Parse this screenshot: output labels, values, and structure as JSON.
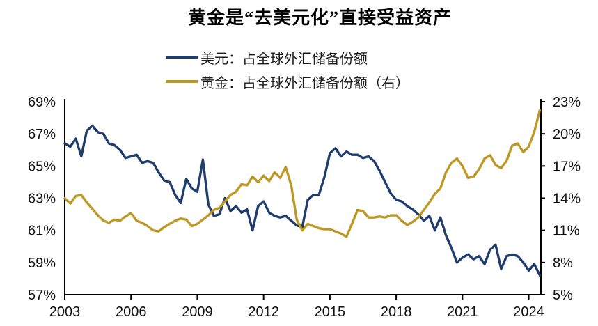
{
  "title": "黄金是“去美元化”直接受益资产",
  "legend": {
    "items": [
      {
        "label": "美元：占全球外汇储备份额",
        "color": "#1F3D6D"
      },
      {
        "label": "黄金：占全球外汇储备份额（右）",
        "color": "#BD9824"
      }
    ]
  },
  "chart_data": {
    "type": "line",
    "title": "黄金是“去美元化”直接受益资产",
    "x_start": 2003.0,
    "x_step": 0.25,
    "x_tick_labels": [
      "2003",
      "2006",
      "2009",
      "2012",
      "2015",
      "2018",
      "2021",
      "2024"
    ],
    "left_axis": {
      "ticks": [
        "69%",
        "67%",
        "65%",
        "63%",
        "61%",
        "59%",
        "57%"
      ],
      "range": [
        57,
        69
      ]
    },
    "right_axis": {
      "ticks": [
        "23%",
        "20%",
        "17%",
        "14%",
        "11%",
        "8%",
        "5%"
      ],
      "range": [
        5,
        23
      ]
    },
    "grid": "off",
    "legend_position": "top",
    "series": [
      {
        "name": "美元：占全球外汇储备份额",
        "axis": "left",
        "color": "#1F3D6D",
        "values": [
          66.4,
          66.2,
          66.7,
          65.6,
          67.2,
          67.5,
          67.1,
          67.0,
          66.4,
          66.3,
          66.0,
          65.5,
          65.6,
          65.7,
          65.2,
          65.3,
          65.2,
          64.6,
          64.1,
          64.0,
          63.2,
          62.7,
          64.2,
          63.6,
          63.4,
          65.4,
          62.6,
          61.9,
          62.0,
          63.0,
          62.2,
          62.5,
          62.1,
          62.3,
          61.0,
          62.5,
          62.8,
          62.1,
          61.9,
          61.8,
          61.9,
          61.6,
          61.3,
          61.2,
          62.9,
          63.2,
          63.2,
          64.3,
          65.8,
          66.1,
          65.6,
          65.9,
          65.7,
          65.7,
          65.5,
          65.6,
          65.3,
          64.7,
          64.0,
          63.3,
          62.9,
          62.8,
          62.5,
          62.3,
          62.0,
          61.6,
          61.9,
          61.0,
          61.8,
          60.7,
          59.9,
          59.0,
          59.3,
          59.5,
          59.2,
          59.4,
          58.9,
          59.8,
          60.1,
          58.6,
          59.4,
          59.5,
          59.4,
          59.0,
          58.5,
          58.9,
          58.2
        ]
      },
      {
        "name": "黄金：占全球外汇储备份额（右）",
        "axis": "right",
        "color": "#BD9824",
        "values": [
          14.0,
          13.5,
          14.2,
          14.3,
          13.6,
          13.0,
          12.4,
          11.9,
          11.7,
          12.0,
          11.9,
          12.3,
          12.6,
          11.9,
          11.7,
          11.4,
          11.0,
          10.9,
          11.3,
          11.6,
          11.9,
          12.1,
          12.0,
          11.4,
          11.6,
          12.0,
          12.4,
          12.9,
          13.1,
          13.7,
          14.3,
          14.6,
          15.3,
          15.2,
          16.0,
          15.5,
          16.1,
          15.6,
          16.4,
          15.9,
          16.9,
          15.2,
          12.0,
          11.0,
          11.6,
          11.4,
          11.2,
          11.1,
          11.1,
          10.9,
          10.7,
          10.4,
          11.6,
          12.9,
          12.8,
          12.2,
          12.2,
          12.3,
          12.2,
          12.4,
          12.4,
          11.9,
          11.5,
          11.8,
          12.2,
          12.9,
          13.6,
          14.4,
          14.9,
          16.4,
          17.3,
          17.7,
          17.0,
          15.9,
          16.0,
          16.7,
          17.7,
          18.0,
          17.1,
          16.8,
          17.5,
          18.9,
          19.1,
          18.3,
          18.8,
          20.2,
          22.2
        ]
      }
    ]
  }
}
